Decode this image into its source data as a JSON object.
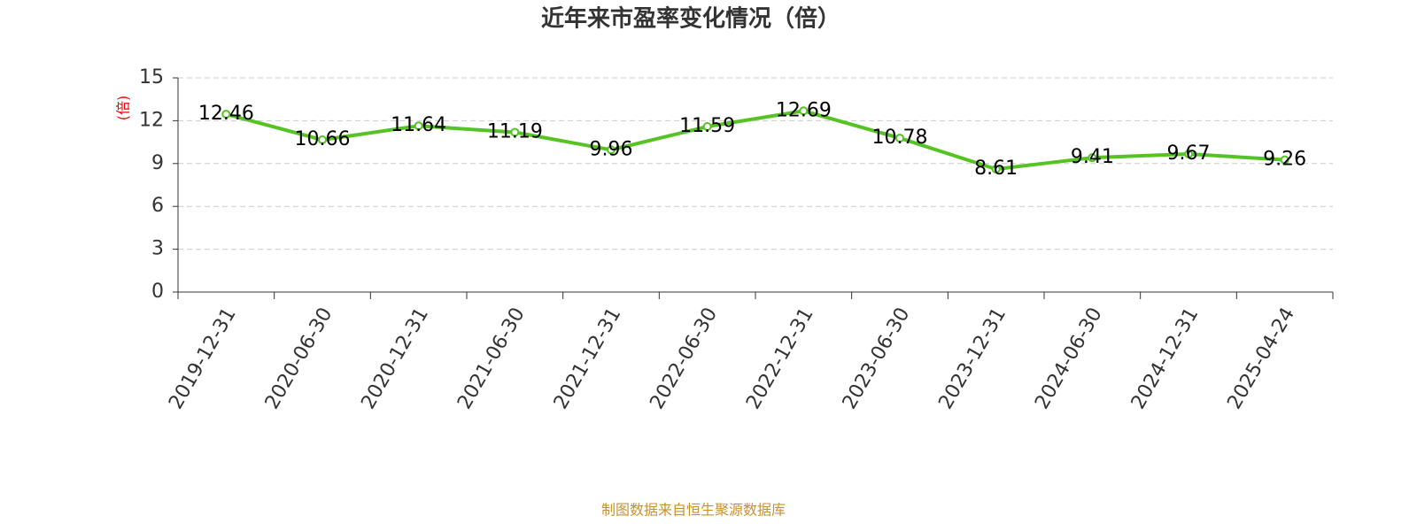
{
  "chart_data": {
    "type": "line",
    "title": "近年来市盈率变化情况（倍）",
    "y_label": "(倍)",
    "categories": [
      "2019-12-31",
      "2020-06-30",
      "2020-12-31",
      "2021-06-30",
      "2021-12-31",
      "2022-06-30",
      "2022-12-31",
      "2023-06-30",
      "2023-12-31",
      "2024-06-30",
      "2024-12-31",
      "2025-04-24"
    ],
    "values": [
      12.46,
      10.66,
      11.64,
      11.19,
      9.96,
      11.59,
      12.69,
      10.78,
      8.61,
      9.41,
      9.67,
      9.26
    ],
    "color": "#56c324",
    "ylim": [
      0,
      15
    ],
    "yticks": [
      0,
      3,
      6,
      9,
      12,
      15
    ],
    "grid": true,
    "source": "制图数据来自恒生聚源数据库"
  }
}
